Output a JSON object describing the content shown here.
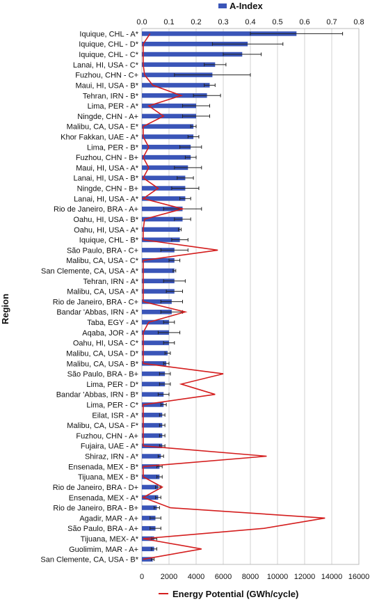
{
  "chart_data": {
    "type": "bar",
    "ylabel": "Region",
    "top_axis": {
      "ticks": [
        "0.0",
        "0.1",
        "0.2",
        "0.3",
        "0.4",
        "0.5",
        "0.6",
        "0.7",
        "0.8"
      ],
      "range": [
        0,
        0.8
      ]
    },
    "bottom_axis": {
      "ticks": [
        "0",
        "2000",
        "4000",
        "6000",
        "8000",
        "10000",
        "12000",
        "14000",
        "16000"
      ],
      "range": [
        0,
        16000
      ]
    },
    "grid": true,
    "legend_placement": "top and bottom",
    "colors": {
      "bar": "#3a55b8",
      "line": "#d41d1d",
      "error": "#222222",
      "grid": "#d0d0d0"
    },
    "categories": [
      "Iquique, CHL - A*",
      "Iquique, CHL - D*",
      "Iquique, CHL - C*",
      "Lanai, HI, USA - C*",
      "Fuzhou, CHN - C+",
      "Maui, HI, USA - B*",
      "Tehran, IRN - B*",
      "Lima, PER - A*",
      "Ningde, CHN - A+",
      "Malibu, CA, USA - E*",
      "Khor Fakkan, UAE - A*",
      "Lima, PER - B*",
      "Fuzhou, CHN - B+",
      "Maui, HI, USA - A*",
      "Lanai, HI, USA - B*",
      "Ningde, CHN - B+",
      "Lanai, HI, USA - A*",
      "Rio de Janeiro, BRA - A+",
      "Oahu, HI, USA - B*",
      "Oahu, HI, USA - A*",
      "Iquique, CHL - B*",
      "São Paulo, BRA - C+",
      "Malibu, CA, USA - C*",
      "San Clemente, CA, USA - A*",
      "Tehran, IRN - A*",
      "Malibu, CA, USA - A*",
      "Rio de Janeiro, BRA - C+",
      "Bandar 'Abbas, IRN  - A*",
      "Taba, EGY - A*",
      "Aqaba, JOR - A*",
      "Oahu, HI, USA - C*",
      "Malibu, CA, USA - D*",
      "Malibu, CA, USA - B*",
      "São Paulo, BRA - B+",
      "Lima, PER - D*",
      "Bandar 'Abbas, IRN  - B*",
      "Lima, PER - C*",
      "Eilat, ISR - A*",
      "Malibu, CA, USA - F*",
      "Fuzhou, CHN - A+",
      "Fujaira, UAE - A*",
      "Shiraz, IRN - A*",
      "Ensenada, MEX - B*",
      "Tijuana, MEX - B*",
      "Rio de Janeiro, BRA - D+",
      "Ensenada, MEX - A*",
      "Rio de Janeiro, BRA - B+",
      "Agadir, MAR - A+",
      "São Paulo, BRA - A+",
      "Tijuana, MEX- A*",
      "Guolimim, MAR - A+",
      "San Clemente, CA, USA - B*"
    ],
    "series": [
      {
        "name": "A-Index",
        "axis": "top",
        "values": [
          0.57,
          0.39,
          0.37,
          0.27,
          0.26,
          0.25,
          0.24,
          0.2,
          0.2,
          0.19,
          0.19,
          0.18,
          0.18,
          0.17,
          0.16,
          0.16,
          0.16,
          0.15,
          0.15,
          0.14,
          0.14,
          0.12,
          0.12,
          0.12,
          0.12,
          0.12,
          0.11,
          0.11,
          0.1,
          0.1,
          0.1,
          0.095,
          0.09,
          0.085,
          0.085,
          0.08,
          0.08,
          0.075,
          0.075,
          0.075,
          0.075,
          0.07,
          0.065,
          0.065,
          0.06,
          0.06,
          0.055,
          0.05,
          0.05,
          0.045,
          0.045,
          0.04
        ],
        "errors": [
          0.17,
          0.13,
          0.07,
          0.04,
          0.14,
          0.02,
          0.05,
          0.05,
          0.05,
          0.01,
          0.02,
          0.04,
          0.02,
          0.05,
          0.03,
          0.05,
          0.02,
          0.07,
          0.03,
          0.005,
          0.03,
          0.05,
          0.02,
          0.005,
          0.04,
          0.03,
          0.04,
          0.04,
          0.02,
          0.04,
          0.02,
          0.01,
          0.01,
          0.02,
          0.02,
          0.02,
          0.01,
          0.01,
          0.01,
          0.01,
          0.01,
          0.01,
          0.01,
          0.01,
          0.01,
          0.01,
          0.01,
          0.02,
          0.02,
          0.01,
          0.01,
          0.005
        ]
      },
      {
        "name": "Energy Potential (GWh/cycle)",
        "axis": "bottom",
        "type": "line",
        "values": [
          600,
          100,
          100,
          100,
          200,
          800,
          2900,
          500,
          1600,
          100,
          100,
          500,
          100,
          500,
          100,
          1200,
          100,
          3000,
          200,
          100,
          100,
          5600,
          100,
          100,
          100,
          100,
          100,
          3200,
          500,
          100,
          100,
          100,
          100,
          6000,
          2900,
          5400,
          100,
          100,
          100,
          100,
          100,
          9200,
          100,
          100,
          1500,
          100,
          2100,
          13500,
          9000,
          100,
          4400,
          100
        ]
      }
    ]
  }
}
